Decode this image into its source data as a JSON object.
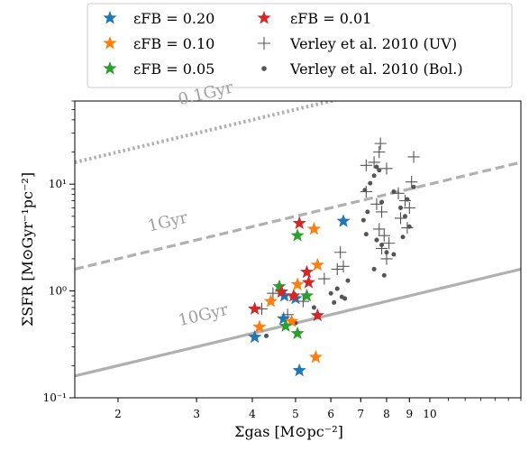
{
  "chart_data": {
    "type": "scatter",
    "xscale": "log",
    "yscale": "log",
    "xlim": [
      1.6,
      16
    ],
    "ylim": [
      0.1,
      60
    ],
    "xticks": [
      {
        "v": 2,
        "label": "2"
      },
      {
        "v": 3,
        "label": "3"
      },
      {
        "v": 4,
        "label": "4"
      },
      {
        "v": 5,
        "label": "5"
      },
      {
        "v": 6,
        "label": "6"
      },
      {
        "v": 7,
        "label": "7"
      },
      {
        "v": 8,
        "label": "8"
      },
      {
        "v": 9,
        "label": "9"
      },
      {
        "v": 10,
        "label": "10"
      }
    ],
    "yticks": [
      {
        "v": 0.1,
        "label": "10⁻¹"
      },
      {
        "v": 1,
        "label": "10⁰"
      },
      {
        "v": 10,
        "label": "10¹"
      }
    ],
    "xlabel": "Σgas [M⊙pc⁻²]",
    "ylabel": "ΣSFR [M⊙Gyr⁻¹pc⁻²]",
    "legend": {
      "position": "top",
      "entries": [
        {
          "label": "εFB = 0.20",
          "marker": "star",
          "color": "#1f77b4"
        },
        {
          "label": "εFB = 0.01",
          "marker": "star",
          "color": "#d62728"
        },
        {
          "label": "εFB = 0.10",
          "marker": "star",
          "color": "#ff7f0e"
        },
        {
          "label": "Verley et al. 2010 (UV)",
          "marker": "plus",
          "color": "#555555"
        },
        {
          "label": "εFB = 0.05",
          "marker": "star",
          "color": "#2ca02c"
        },
        {
          "label": "Verley et al. 2010 (Bol.)",
          "marker": "dot",
          "color": "#555555"
        }
      ]
    },
    "reference_lines": [
      {
        "label": "0.1Gyr",
        "style": "dotted",
        "color": "#b0b0b0",
        "tdep_gyr": 0.1
      },
      {
        "label": "1Gyr",
        "style": "dashed",
        "color": "#b0b0b0",
        "tdep_gyr": 1
      },
      {
        "label": "10Gyr",
        "style": "solid",
        "color": "#b0b0b0",
        "tdep_gyr": 10
      }
    ],
    "series": [
      {
        "name": "εFB = 0.20",
        "marker": "star",
        "color": "#1f77b4",
        "points": [
          [
            4.05,
            0.37
          ],
          [
            4.7,
            0.55
          ],
          [
            4.72,
            0.9
          ],
          [
            5.0,
            0.85
          ],
          [
            5.1,
            0.18
          ],
          [
            6.4,
            4.5
          ]
        ]
      },
      {
        "name": "εFB = 0.10",
        "marker": "star",
        "color": "#ff7f0e",
        "points": [
          [
            4.15,
            0.46
          ],
          [
            4.4,
            0.8
          ],
          [
            4.9,
            0.52
          ],
          [
            5.05,
            1.15
          ],
          [
            5.5,
            3.8
          ],
          [
            5.6,
            1.75
          ],
          [
            5.55,
            0.24
          ]
        ]
      },
      {
        "name": "εFB = 0.05",
        "marker": "star",
        "color": "#2ca02c",
        "points": [
          [
            4.6,
            1.1
          ],
          [
            4.75,
            0.47
          ],
          [
            5.05,
            0.4
          ],
          [
            5.05,
            3.3
          ],
          [
            5.3,
            0.9
          ]
        ]
      },
      {
        "name": "εFB = 0.01",
        "marker": "star",
        "color": "#d62728",
        "points": [
          [
            4.05,
            0.68
          ],
          [
            4.65,
            0.98
          ],
          [
            4.95,
            0.9
          ],
          [
            5.1,
            4.3
          ],
          [
            5.3,
            1.5
          ],
          [
            5.35,
            1.2
          ],
          [
            5.6,
            0.59
          ]
        ]
      },
      {
        "name": "Verley et al. 2010 (UV)",
        "marker": "plus",
        "color": "#555555",
        "points": [
          [
            4.2,
            0.68
          ],
          [
            4.45,
            0.95
          ],
          [
            4.8,
            0.6
          ],
          [
            5.2,
            0.8
          ],
          [
            5.8,
            1.3
          ],
          [
            6.3,
            2.3
          ],
          [
            6.4,
            1.7
          ],
          [
            6.2,
            1.6
          ],
          [
            7.2,
            15.0
          ],
          [
            7.5,
            16.0
          ],
          [
            7.7,
            20.0
          ],
          [
            7.75,
            24.0
          ],
          [
            8.0,
            14.0
          ],
          [
            7.2,
            8.5
          ],
          [
            7.6,
            6.5
          ],
          [
            7.8,
            5.5
          ],
          [
            8.5,
            8.2
          ],
          [
            8.8,
            7.0
          ],
          [
            9.0,
            6.0
          ],
          [
            9.2,
            18.0
          ],
          [
            7.7,
            3.8
          ],
          [
            7.9,
            3.3
          ],
          [
            8.1,
            2.8
          ],
          [
            8.0,
            2.0
          ],
          [
            7.8,
            2.5
          ],
          [
            8.6,
            4.8
          ],
          [
            8.9,
            3.9
          ],
          [
            9.1,
            10.5
          ]
        ]
      },
      {
        "name": "Verley et al. 2010 (Bol.)",
        "marker": "dot",
        "color": "#555555",
        "points": [
          [
            4.3,
            0.38
          ],
          [
            5.0,
            0.5
          ],
          [
            5.5,
            0.7
          ],
          [
            6.0,
            0.95
          ],
          [
            6.2,
            1.05
          ],
          [
            6.35,
            0.88
          ],
          [
            6.45,
            0.85
          ],
          [
            6.1,
            0.78
          ],
          [
            6.55,
            1.25
          ],
          [
            7.15,
            8.8
          ],
          [
            7.35,
            10.2
          ],
          [
            7.5,
            12.0
          ],
          [
            7.6,
            14.5
          ],
          [
            7.7,
            13.5
          ],
          [
            7.25,
            5.5
          ],
          [
            7.1,
            4.6
          ],
          [
            7.2,
            3.4
          ],
          [
            7.6,
            3.0
          ],
          [
            7.8,
            2.7
          ],
          [
            7.5,
            1.6
          ],
          [
            7.9,
            1.4
          ],
          [
            8.3,
            8.5
          ],
          [
            8.6,
            6.0
          ],
          [
            8.8,
            5.0
          ],
          [
            9.0,
            4.0
          ],
          [
            8.7,
            3.2
          ],
          [
            8.3,
            2.2
          ],
          [
            8.9,
            7.2
          ],
          [
            9.2,
            9.4
          ],
          [
            8.0,
            2.3
          ],
          [
            7.8,
            6.8
          ]
        ]
      }
    ]
  }
}
